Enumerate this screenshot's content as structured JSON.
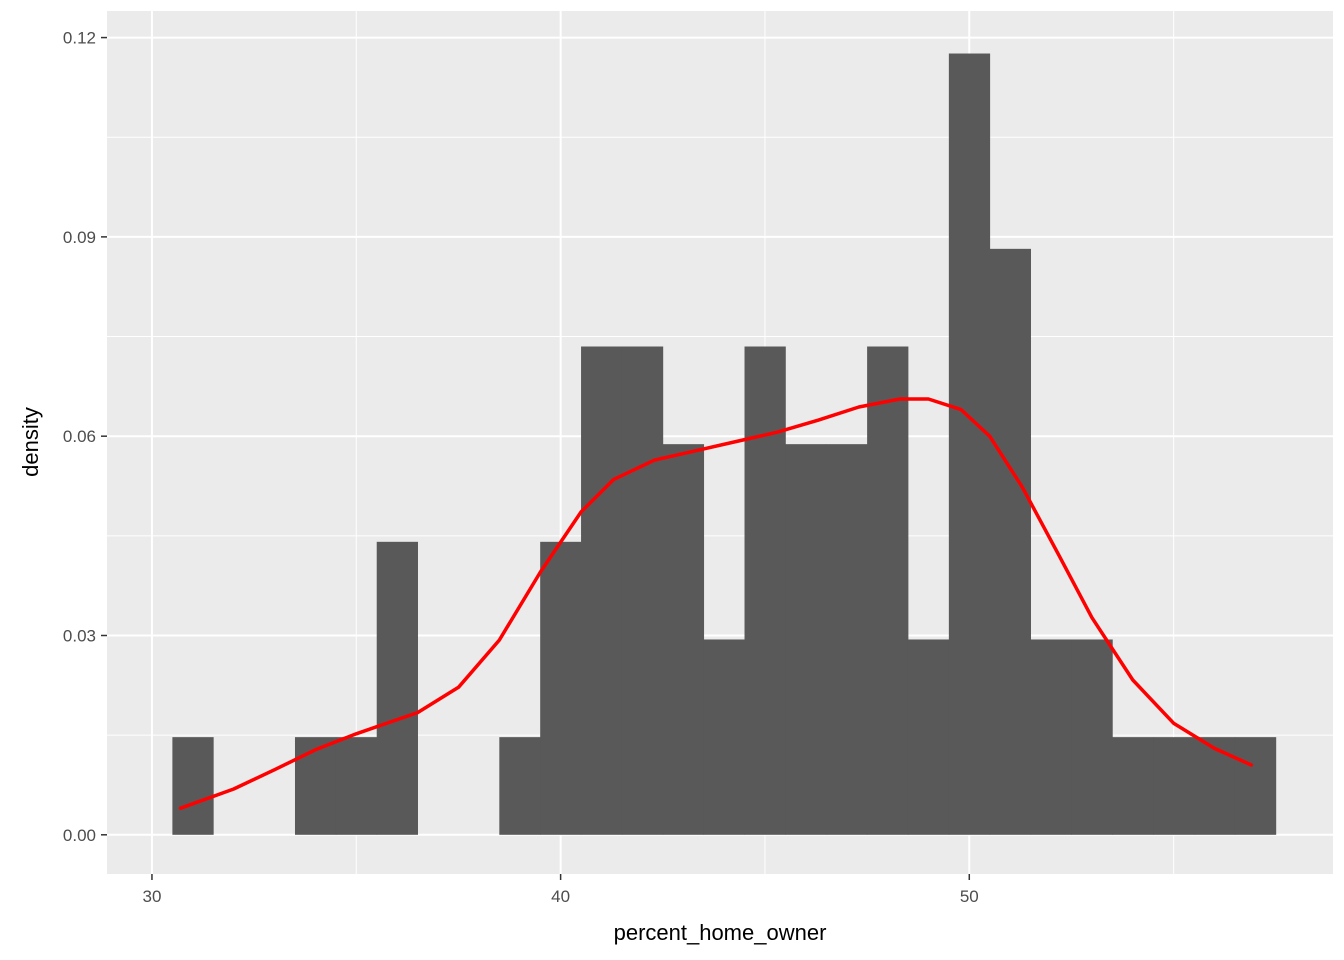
{
  "chart_data": {
    "type": "bar",
    "subtype": "histogram-with-density",
    "title": "",
    "xlabel": "percent_home_owner",
    "ylabel": "density",
    "xlim": [
      28.9,
      58.9
    ],
    "ylim": [
      -0.0059,
      0.124
    ],
    "x_ticks": [
      30,
      40,
      50
    ],
    "x_tick_labels": [
      "30",
      "40",
      "50"
    ],
    "y_ticks": [
      0.0,
      0.03,
      0.06,
      0.09,
      0.12
    ],
    "y_tick_labels": [
      "0.00",
      "0.03",
      "0.06",
      "0.09",
      "0.12"
    ],
    "grid": true,
    "legend": "none",
    "colors": {
      "panel_background": "#ebebeb",
      "grid": "#ffffff",
      "bar_fill": "#595959",
      "density_line": "#ff0000",
      "tick_label": "#4d4d4d",
      "tick_mark": "#333333"
    },
    "bins": [
      {
        "x0": 30.5,
        "x1": 31.5,
        "density": 0.0147
      },
      {
        "x0": 31.5,
        "x1": 32.5,
        "density": 0.0
      },
      {
        "x0": 32.5,
        "x1": 33.5,
        "density": 0.0
      },
      {
        "x0": 33.5,
        "x1": 34.5,
        "density": 0.0147
      },
      {
        "x0": 34.5,
        "x1": 35.5,
        "density": 0.0147
      },
      {
        "x0": 35.5,
        "x1": 36.5,
        "density": 0.0441
      },
      {
        "x0": 36.5,
        "x1": 37.5,
        "density": 0.0
      },
      {
        "x0": 37.5,
        "x1": 38.5,
        "density": 0.0
      },
      {
        "x0": 38.5,
        "x1": 39.5,
        "density": 0.0147
      },
      {
        "x0": 39.5,
        "x1": 40.5,
        "density": 0.0441
      },
      {
        "x0": 40.5,
        "x1": 41.5,
        "density": 0.0735
      },
      {
        "x0": 41.5,
        "x1": 42.5,
        "density": 0.0735
      },
      {
        "x0": 42.5,
        "x1": 43.5,
        "density": 0.0588
      },
      {
        "x0": 43.5,
        "x1": 44.5,
        "density": 0.0294
      },
      {
        "x0": 44.5,
        "x1": 45.5,
        "density": 0.0735
      },
      {
        "x0": 45.5,
        "x1": 46.5,
        "density": 0.0588
      },
      {
        "x0": 46.5,
        "x1": 47.5,
        "density": 0.0588
      },
      {
        "x0": 47.5,
        "x1": 48.5,
        "density": 0.0735
      },
      {
        "x0": 48.5,
        "x1": 49.5,
        "density": 0.0294
      },
      {
        "x0": 49.5,
        "x1": 50.5,
        "density": 0.1176
      },
      {
        "x0": 50.5,
        "x1": 51.5,
        "density": 0.0882
      },
      {
        "x0": 51.5,
        "x1": 52.5,
        "density": 0.0294
      },
      {
        "x0": 52.5,
        "x1": 53.5,
        "density": 0.0294
      },
      {
        "x0": 53.5,
        "x1": 54.5,
        "density": 0.0147
      },
      {
        "x0": 54.5,
        "x1": 55.5,
        "density": 0.0147
      },
      {
        "x0": 55.5,
        "x1": 56.5,
        "density": 0.0147
      },
      {
        "x0": 56.5,
        "x1": 57.5,
        "density": 0.0147
      }
    ],
    "density_curve": {
      "x": [
        30.7,
        32.0,
        33.0,
        34.0,
        35.0,
        35.7,
        36.5,
        37.5,
        38.5,
        39.5,
        40.5,
        41.3,
        42.3,
        43.3,
        44.3,
        45.3,
        46.3,
        47.3,
        48.3,
        49.0,
        49.8,
        50.5,
        51.3,
        52.2,
        53.0,
        54.0,
        55.0,
        56.0,
        56.9
      ],
      "y": [
        0.004,
        0.0069,
        0.0098,
        0.0128,
        0.0152,
        0.0167,
        0.0184,
        0.0222,
        0.0293,
        0.0395,
        0.0486,
        0.0535,
        0.0564,
        0.0578,
        0.0592,
        0.0606,
        0.0624,
        0.0644,
        0.0656,
        0.0656,
        0.064,
        0.06,
        0.0523,
        0.042,
        0.0327,
        0.0233,
        0.0168,
        0.013,
        0.0105
      ]
    }
  }
}
